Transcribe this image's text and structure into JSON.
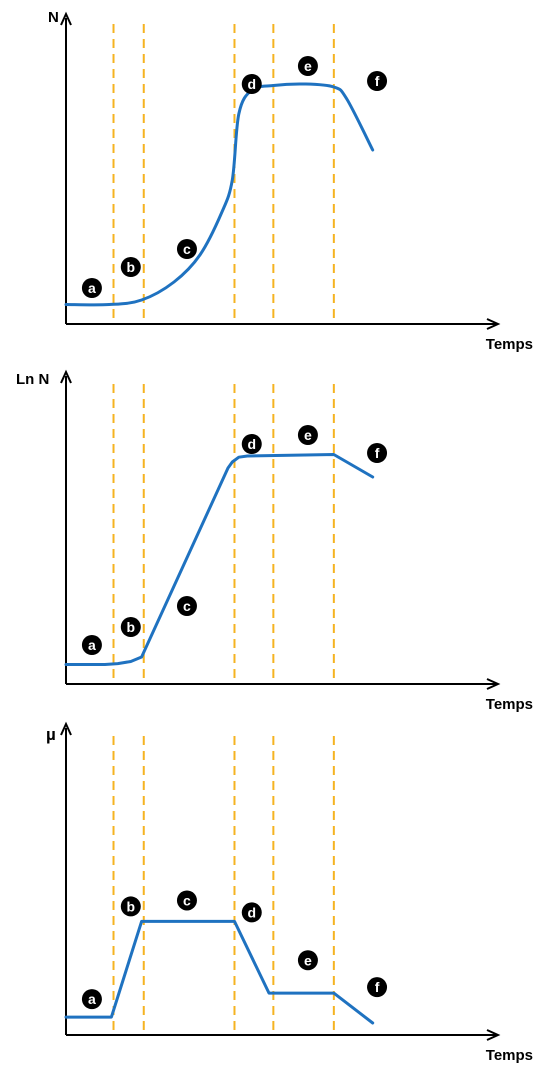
{
  "colors": {
    "curve": "#1f72c0",
    "phase_line": "#f5b321",
    "axis": "#000000",
    "marker_fill": "#000000",
    "marker_text": "#ffffff"
  },
  "chart_data": [
    {
      "type": "line",
      "title": "",
      "ylabel": "N",
      "xlabel": "Temps",
      "xlim": [
        0,
        100
      ],
      "ylim": [
        0,
        100
      ],
      "grid": false,
      "axis_ticks": false,
      "phase_boundaries": [
        11,
        18,
        39,
        48,
        62
      ],
      "phase_labels": [
        {
          "label": "a",
          "x": 6,
          "y": 12
        },
        {
          "label": "b",
          "x": 15,
          "y": 19
        },
        {
          "label": "c",
          "x": 28,
          "y": 25
        },
        {
          "label": "d",
          "x": 43,
          "y": 80
        },
        {
          "label": "e",
          "x": 56,
          "y": 86
        },
        {
          "label": "f",
          "x": 72,
          "y": 81
        }
      ],
      "series": [
        {
          "smooth": true,
          "points": [
            [
              0,
              6.5
            ],
            [
              10,
              6.5
            ],
            [
              17.5,
              8
            ],
            [
              25,
              14
            ],
            [
              31,
              23
            ],
            [
              36,
              37
            ],
            [
              38.5,
              48
            ],
            [
              40,
              70
            ],
            [
              43,
              78
            ],
            [
              48,
              79.5
            ],
            [
              55,
              80
            ],
            [
              62,
              79
            ],
            [
              65,
              75
            ],
            [
              71,
              58
            ]
          ]
        }
      ]
    },
    {
      "type": "line",
      "title": "",
      "ylabel": "Ln N",
      "xlabel": "Temps",
      "xlim": [
        0,
        100
      ],
      "ylim": [
        0,
        100
      ],
      "grid": false,
      "axis_ticks": false,
      "phase_boundaries": [
        11,
        18,
        39,
        48,
        62
      ],
      "phase_labels": [
        {
          "label": "a",
          "x": 6,
          "y": 13
        },
        {
          "label": "b",
          "x": 15,
          "y": 19
        },
        {
          "label": "c",
          "x": 28,
          "y": 26
        },
        {
          "label": "d",
          "x": 43,
          "y": 80
        },
        {
          "label": "e",
          "x": 56,
          "y": 83
        },
        {
          "label": "f",
          "x": 72,
          "y": 77
        }
      ],
      "series": [
        {
          "smooth": false,
          "points": [
            [
              0,
              6.5
            ],
            [
              9,
              6.5
            ],
            [
              12,
              6.8
            ],
            [
              15,
              7.5
            ],
            [
              17.5,
              9
            ],
            [
              37.5,
              72
            ],
            [
              38.5,
              74
            ],
            [
              40,
              75.6
            ],
            [
              42,
              76
            ],
            [
              62,
              76.5
            ],
            [
              71,
              69
            ]
          ]
        }
      ]
    },
    {
      "type": "line",
      "title": "",
      "ylabel": "µ",
      "xlabel": "Temps",
      "xlim": [
        0,
        100
      ],
      "ylim": [
        0,
        100
      ],
      "grid": false,
      "axis_ticks": false,
      "phase_boundaries": [
        11,
        18,
        39,
        48,
        62
      ],
      "phase_labels": [
        {
          "label": "a",
          "x": 6,
          "y": 12
        },
        {
          "label": "b",
          "x": 15,
          "y": 43
        },
        {
          "label": "c",
          "x": 28,
          "y": 45
        },
        {
          "label": "d",
          "x": 43,
          "y": 41
        },
        {
          "label": "e",
          "x": 56,
          "y": 25
        },
        {
          "label": "f",
          "x": 72,
          "y": 16
        }
      ],
      "series": [
        {
          "smooth": false,
          "points": [
            [
              0,
              6
            ],
            [
              10.5,
              6
            ],
            [
              17.5,
              38
            ],
            [
              39,
              38
            ],
            [
              47,
              14
            ],
            [
              62,
              14
            ],
            [
              71,
              4
            ]
          ]
        }
      ]
    }
  ]
}
